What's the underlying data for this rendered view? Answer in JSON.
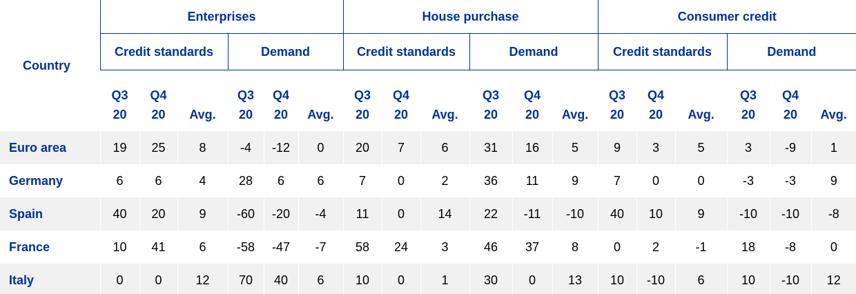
{
  "table": {
    "header": {
      "country": "Country",
      "groups": [
        {
          "label": "Enterprises",
          "subgroups": [
            {
              "label": "Credit standards",
              "columns": [
                "Q3 20",
                "Q4 20",
                "Avg."
              ]
            },
            {
              "label": "Demand",
              "columns": [
                "Q3 20",
                "Q4 20",
                "Avg."
              ]
            }
          ]
        },
        {
          "label": "House purchase",
          "subgroups": [
            {
              "label": "Credit standards",
              "columns": [
                "Q3 20",
                "Q4 20",
                "Avg."
              ]
            },
            {
              "label": "Demand",
              "columns": [
                "Q3 20",
                "Q4 20",
                "Avg."
              ]
            }
          ]
        },
        {
          "label": "Consumer credit",
          "subgroups": [
            {
              "label": "Credit standards",
              "columns": [
                "Q3 20",
                "Q4 20",
                "Avg."
              ]
            },
            {
              "label": "Demand",
              "columns": [
                "Q3 20",
                "Q4 20",
                "Avg."
              ]
            }
          ]
        }
      ]
    },
    "rows": [
      {
        "country": "Euro area",
        "values": [
          19,
          25,
          8,
          -4,
          -12,
          0,
          20,
          7,
          6,
          31,
          16,
          5,
          9,
          3,
          5,
          3,
          -9,
          1
        ]
      },
      {
        "country": "Germany",
        "values": [
          6,
          6,
          4,
          28,
          6,
          6,
          7,
          0,
          2,
          36,
          11,
          9,
          7,
          0,
          0,
          -3,
          -3,
          9
        ]
      },
      {
        "country": "Spain",
        "values": [
          40,
          20,
          9,
          -60,
          -20,
          -4,
          11,
          0,
          14,
          22,
          -11,
          -10,
          40,
          10,
          9,
          -10,
          -10,
          -8
        ]
      },
      {
        "country": "France",
        "values": [
          10,
          41,
          6,
          -58,
          -47,
          -7,
          58,
          24,
          3,
          46,
          37,
          8,
          0,
          2,
          -1,
          18,
          -8,
          0
        ]
      },
      {
        "country": "Italy",
        "values": [
          0,
          0,
          12,
          70,
          40,
          6,
          10,
          0,
          1,
          30,
          0,
          13,
          10,
          -10,
          6,
          10,
          -10,
          12
        ]
      }
    ]
  }
}
